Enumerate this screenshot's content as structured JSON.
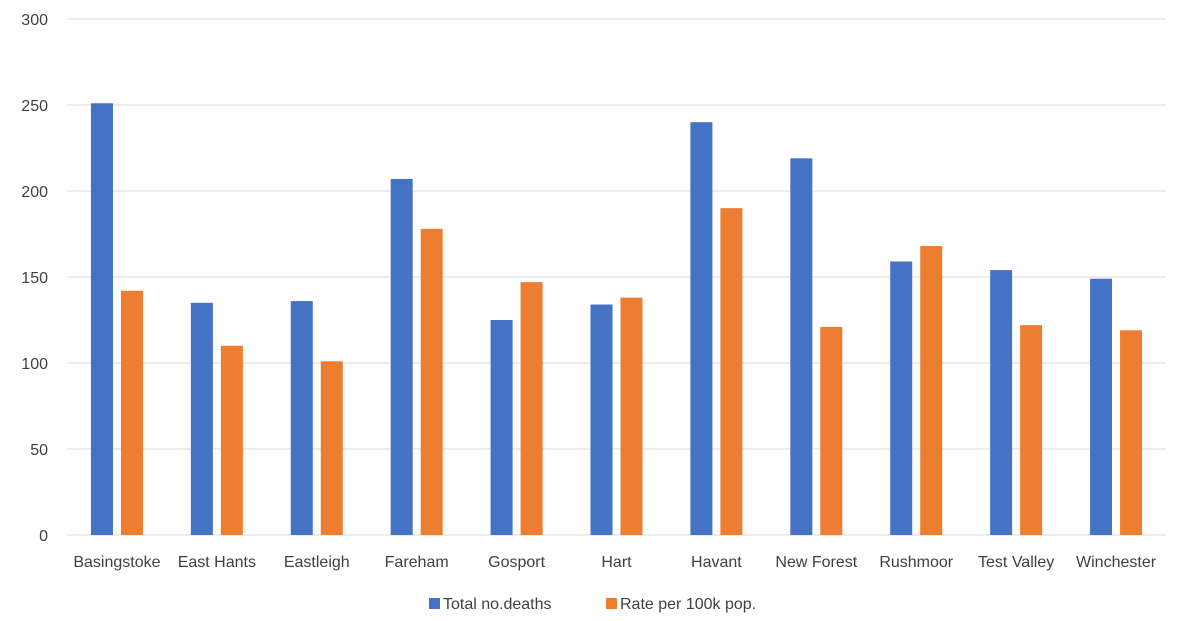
{
  "chart_data": {
    "type": "bar",
    "title": "",
    "xlabel": "",
    "ylabel": "",
    "ylim": [
      0,
      300
    ],
    "yticks": [
      0,
      50,
      100,
      150,
      200,
      250,
      300
    ],
    "grid": true,
    "legend_position": "bottom",
    "categories": [
      "Basingstoke",
      "East Hants",
      "Eastleigh",
      "Fareham",
      "Gosport",
      "Hart",
      "Havant",
      "New Forest",
      "Rushmoor",
      "Test Valley",
      "Winchester"
    ],
    "series": [
      {
        "name": "Total no.deaths",
        "color": "#4472c4",
        "values": [
          251,
          135,
          136,
          207,
          125,
          134,
          240,
          219,
          159,
          154,
          149
        ]
      },
      {
        "name": "Rate per 100k pop.",
        "color": "#ed7d31",
        "values": [
          142,
          110,
          101,
          178,
          147,
          138,
          190,
          121,
          168,
          122,
          119
        ]
      }
    ]
  }
}
